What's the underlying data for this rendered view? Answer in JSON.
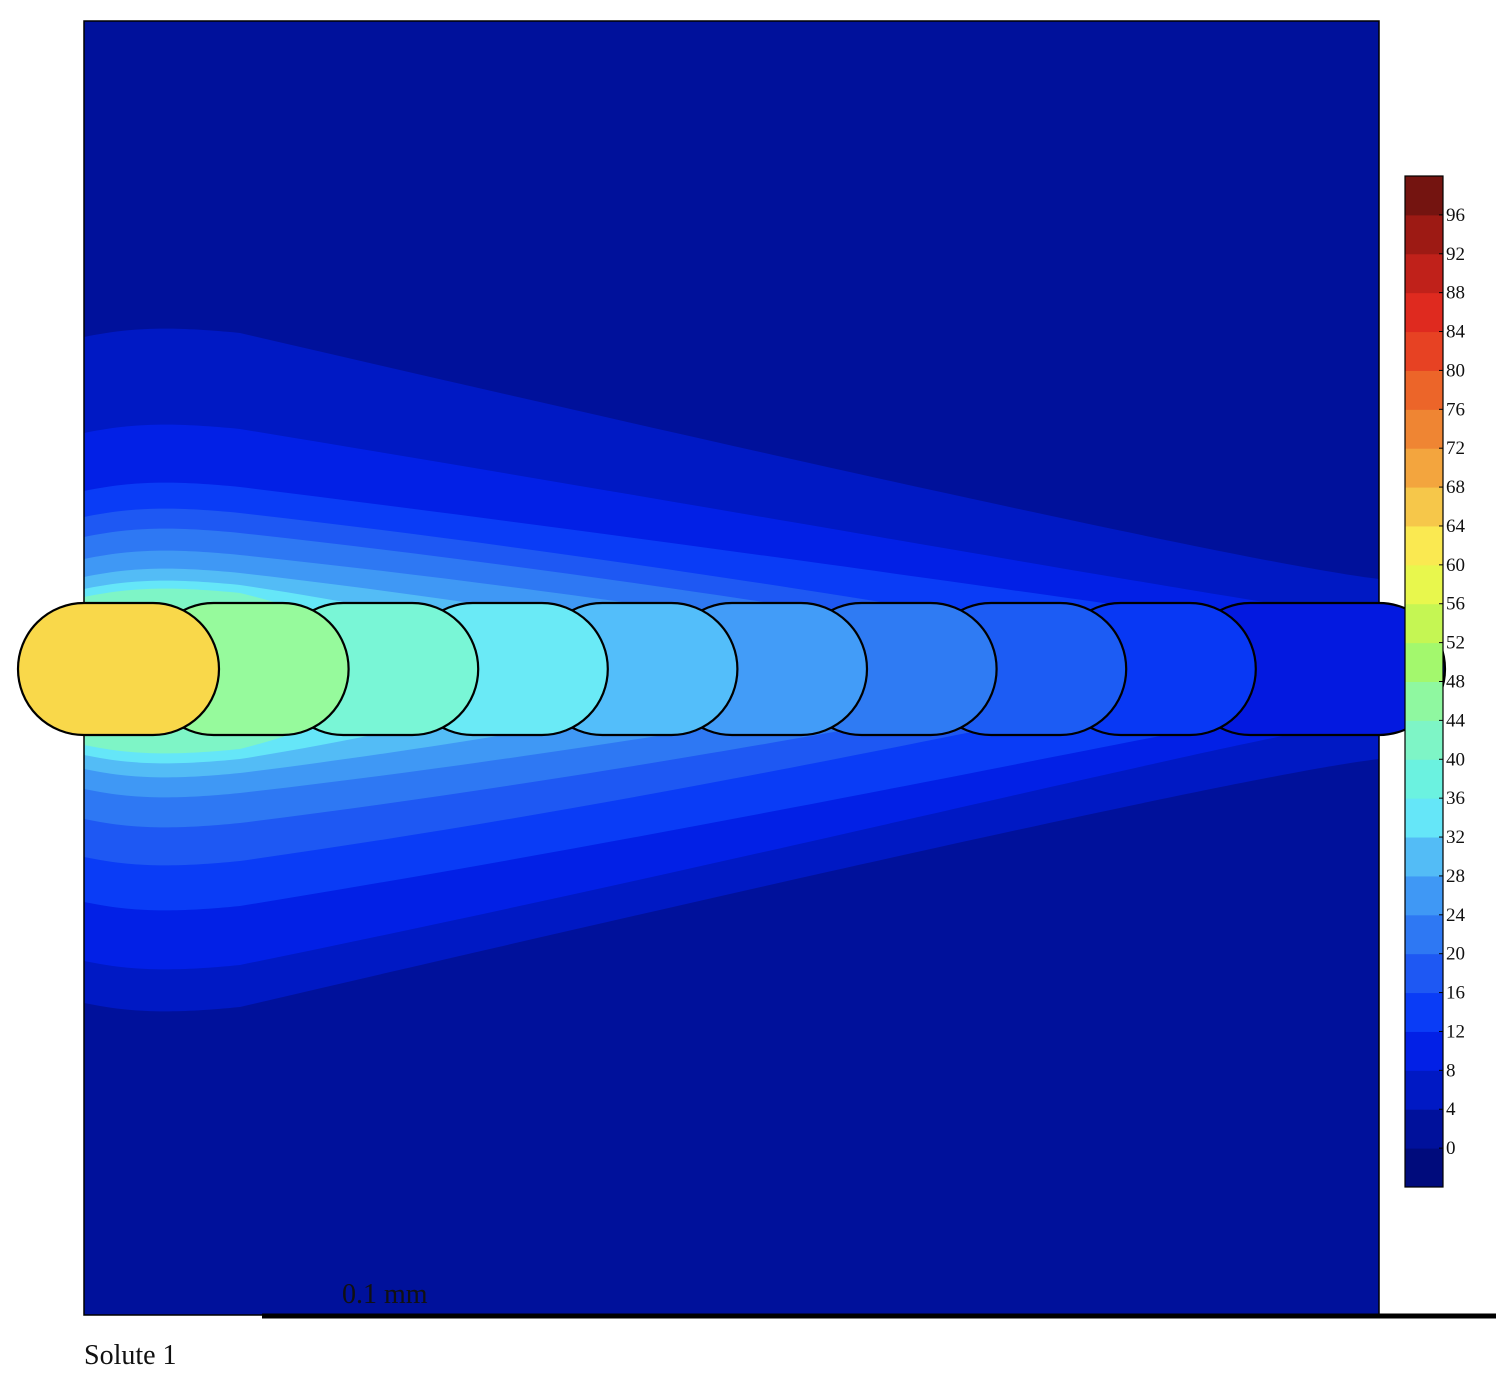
{
  "chart_data": {
    "type": "heatmap",
    "title": "",
    "caption": "Solute 1",
    "scale_bar_label": "0.1 mm",
    "colorbar": {
      "range": [
        -4,
        100
      ],
      "step": 4,
      "tick_labels": [
        "96",
        "92",
        "88",
        "84",
        "80",
        "76",
        "72",
        "68",
        "64",
        "60",
        "56",
        "52",
        "48",
        "44",
        "40",
        "36",
        "32",
        "28",
        "24",
        "20",
        "16",
        "12",
        "8",
        "4",
        "0"
      ],
      "levels": [
        {
          "min": -4,
          "max": 0,
          "color": "#000b7c"
        },
        {
          "min": 0,
          "max": 4,
          "color": "#00119b"
        },
        {
          "min": 4,
          "max": 8,
          "color": "#0019c4"
        },
        {
          "min": 8,
          "max": 12,
          "color": "#0220e6"
        },
        {
          "min": 12,
          "max": 16,
          "color": "#0a3cf6"
        },
        {
          "min": 16,
          "max": 20,
          "color": "#1e58f3"
        },
        {
          "min": 20,
          "max": 24,
          "color": "#2e78f3"
        },
        {
          "min": 24,
          "max": 28,
          "color": "#3f98f5"
        },
        {
          "min": 28,
          "max": 32,
          "color": "#53bcf6"
        },
        {
          "min": 32,
          "max": 36,
          "color": "#65e6f8"
        },
        {
          "min": 36,
          "max": 40,
          "color": "#6bf2e0"
        },
        {
          "min": 40,
          "max": 44,
          "color": "#7ef5c6"
        },
        {
          "min": 44,
          "max": 48,
          "color": "#8ff8a0"
        },
        {
          "min": 48,
          "max": 52,
          "color": "#a3f86d"
        },
        {
          "min": 52,
          "max": 56,
          "color": "#c5f653"
        },
        {
          "min": 56,
          "max": 60,
          "color": "#e8f74d"
        },
        {
          "min": 60,
          "max": 64,
          "color": "#fae951"
        },
        {
          "min": 64,
          "max": 68,
          "color": "#f6c74a"
        },
        {
          "min": 68,
          "max": 72,
          "color": "#f3a53e"
        },
        {
          "min": 72,
          "max": 76,
          "color": "#ef8533"
        },
        {
          "min": 76,
          "max": 80,
          "color": "#ec6529"
        },
        {
          "min": 80,
          "max": 84,
          "color": "#e74223"
        },
        {
          "min": 84,
          "max": 88,
          "color": "#df2a1f"
        },
        {
          "min": 88,
          "max": 92,
          "color": "#c0211a"
        },
        {
          "min": 92,
          "max": 96,
          "color": "#9d1a14"
        },
        {
          "min": 96,
          "max": 100,
          "color": "#741410"
        }
      ]
    },
    "cells": {
      "count": 10,
      "values": [
        62,
        44,
        38,
        33,
        29,
        25,
        21,
        17,
        11,
        7
      ],
      "colors": [
        "#f9d84a",
        "#96fa9c",
        "#79f6d6",
        "#6aeaf6",
        "#53befa",
        "#429cf8",
        "#2f7bf3",
        "#1c5cf4",
        "#0838f4",
        "#0319e0"
      ]
    },
    "field": {
      "background_value": 2,
      "contour_colors": [
        "#0019c4",
        "#0220e6",
        "#0a3cf6",
        "#1e58f3",
        "#2e78f3",
        "#3f98f5",
        "#53bcf6",
        "#65e6f8",
        "#7ef5c6"
      ],
      "background_color": "#00119b"
    }
  }
}
